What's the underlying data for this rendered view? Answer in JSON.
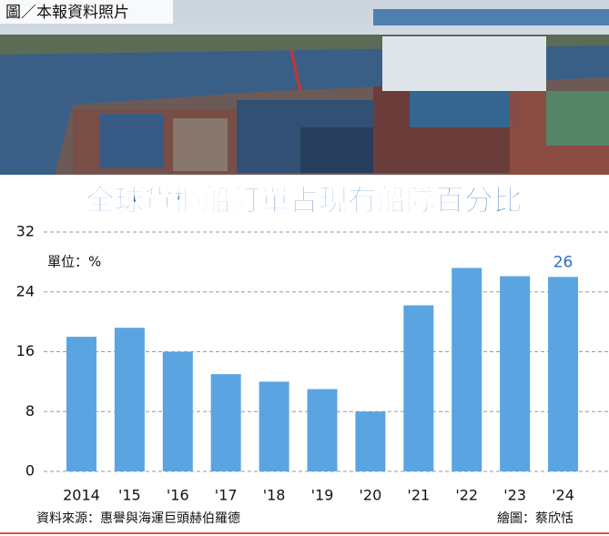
{
  "caption": "圖／本報資料照片",
  "chart_data": {
    "type": "bar",
    "title": "全球貨櫃船訂單占現有船隊百分比",
    "unit": "單位：%",
    "categories": [
      "2014",
      "'15",
      "'16",
      "'17",
      "'18",
      "'19",
      "'20",
      "'21",
      "'22",
      "'23",
      "'24"
    ],
    "values": [
      18,
      19.2,
      16,
      13,
      12,
      11,
      8,
      22.2,
      27.2,
      26.1,
      26
    ],
    "color": "#5ba4e2",
    "ylim": [
      0,
      32
    ],
    "yticks": [
      0,
      8,
      16,
      24,
      32
    ],
    "grid": true,
    "source": "資料來源：惠譽與海運巨頭赫伯羅德",
    "credit": "繪圖：蔡欣恬"
  }
}
